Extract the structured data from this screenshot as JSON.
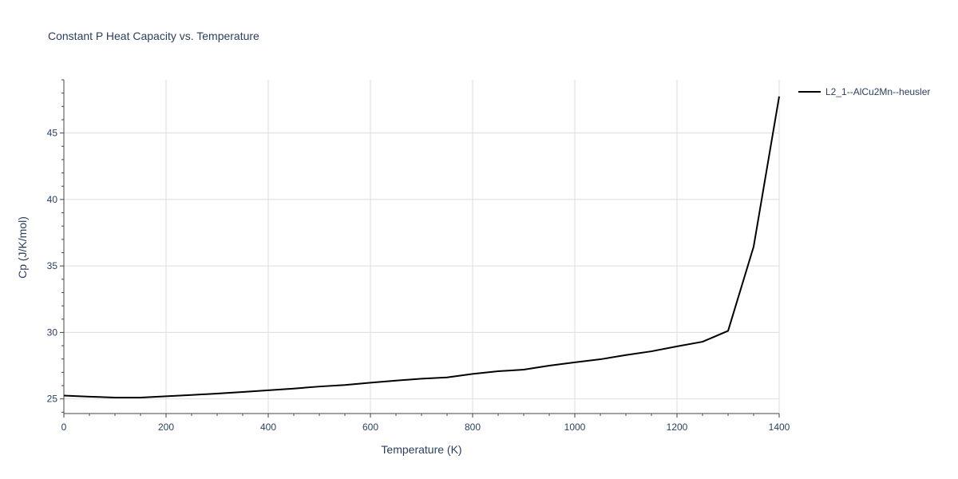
{
  "chart_data": {
    "type": "line",
    "title": "Constant P Heat Capacity vs. Temperature",
    "xlabel": "Temperature (K)",
    "ylabel": "Cp (J/K/mol)",
    "xlim": [
      0,
      1400
    ],
    "ylim": [
      23.9,
      49.0
    ],
    "xticks": [
      0,
      200,
      400,
      600,
      800,
      1000,
      1200,
      1400
    ],
    "yticks": [
      25,
      30,
      35,
      40,
      45
    ],
    "grid": true,
    "legend_position": "top-right outside",
    "series": [
      {
        "name": "L2_1--AlCu2Mn--heusler",
        "color": "#000000",
        "x": [
          0,
          50,
          100,
          150,
          200,
          250,
          300,
          350,
          400,
          450,
          500,
          550,
          600,
          650,
          700,
          750,
          800,
          850,
          900,
          950,
          1000,
          1050,
          1100,
          1150,
          1200,
          1250,
          1300,
          1350,
          1400
        ],
        "y": [
          25.25,
          25.17,
          25.1,
          25.1,
          25.2,
          25.3,
          25.4,
          25.52,
          25.65,
          25.78,
          25.93,
          26.05,
          26.22,
          26.38,
          26.52,
          26.62,
          26.88,
          27.08,
          27.2,
          27.5,
          27.75,
          27.98,
          28.3,
          28.58,
          28.95,
          29.3,
          30.12,
          36.45,
          47.75
        ]
      }
    ]
  }
}
